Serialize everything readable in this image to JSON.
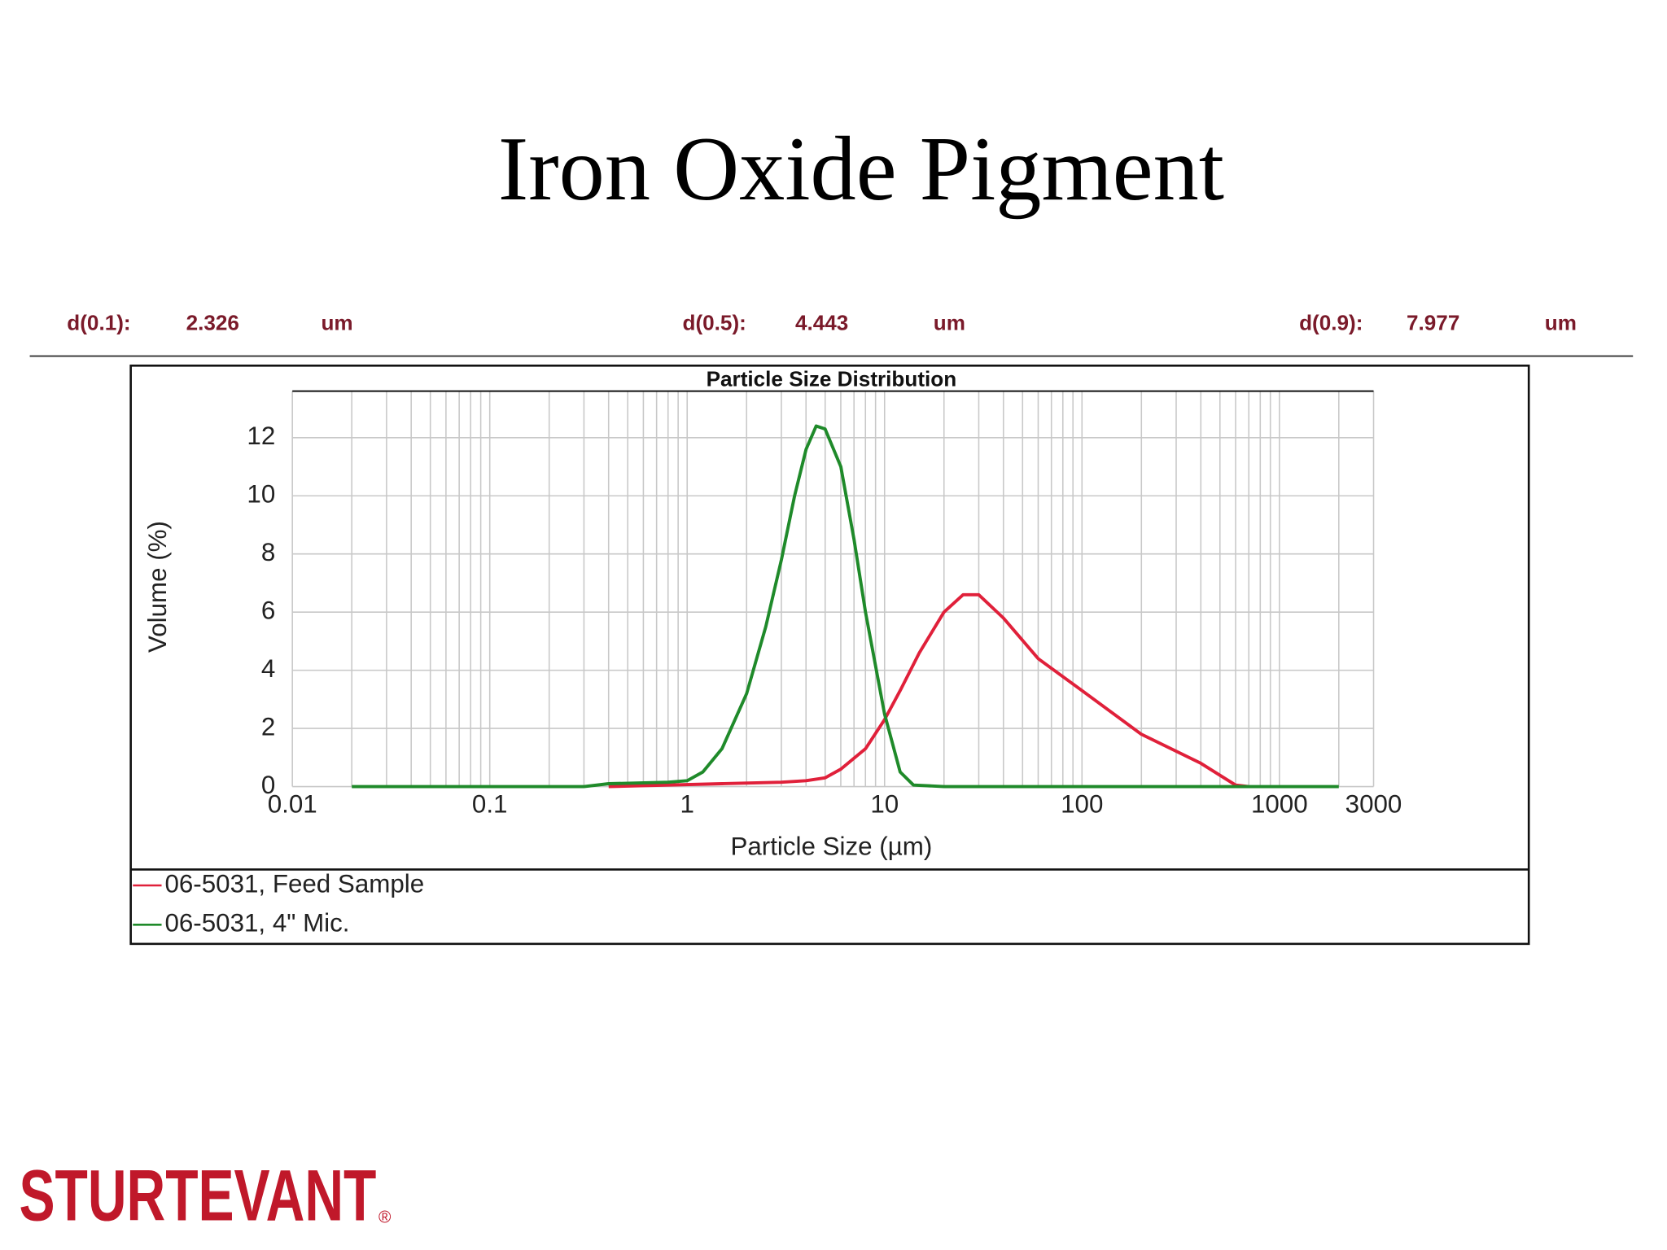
{
  "slide": {
    "title": "Iron Oxide Pigment",
    "stats": [
      {
        "label": "d(0.1):",
        "value": 2.326,
        "unit": "um"
      },
      {
        "label": "d(0.5):",
        "value": 4.443,
        "unit": "um"
      },
      {
        "label": "d(0.9):",
        "value": 7.977,
        "unit": "um"
      }
    ],
    "logo": "STURTEVANT",
    "logo_mark": "®"
  },
  "chart_data": {
    "type": "line",
    "title": "Particle Size Distribution",
    "x_label": "Particle Size (µm)",
    "y_label": "Volume (%)",
    "xlog": true,
    "grid": true,
    "xlim": [
      0.01,
      3000
    ],
    "xticks": [
      0.01,
      0.1,
      1,
      10,
      100,
      1000,
      3000
    ],
    "xminorticks": [
      0.02,
      0.03,
      0.04,
      0.05,
      0.06,
      0.07,
      0.08,
      0.09,
      0.2,
      0.3,
      0.4,
      0.5,
      0.6,
      0.7,
      0.8,
      0.9,
      2,
      3,
      4,
      5,
      6,
      7,
      8,
      9,
      20,
      30,
      40,
      50,
      60,
      70,
      80,
      90,
      200,
      300,
      400,
      500,
      600,
      700,
      800,
      900,
      2000
    ],
    "ylim": [
      0,
      13.6
    ],
    "yticks": [
      0,
      2,
      4,
      6,
      8,
      10,
      12
    ],
    "series": [
      {
        "name": "06-5031, Feed Sample",
        "color": "#e0203a",
        "x": [
          0.4,
          1.5,
          3,
          4,
          5,
          6,
          8,
          10,
          12,
          15,
          20,
          25,
          30,
          40,
          60,
          100,
          200,
          400,
          600,
          700
        ],
        "values": [
          0,
          0.1,
          0.15,
          0.2,
          0.3,
          0.6,
          1.3,
          2.3,
          3.3,
          4.6,
          6.0,
          6.6,
          6.6,
          5.8,
          4.4,
          3.3,
          1.8,
          0.8,
          0.05,
          0
        ]
      },
      {
        "name": "06-5031, 4\" Mic.",
        "color": "#1f8a2a",
        "x": [
          0.02,
          0.3,
          0.4,
          0.8,
          1,
          1.2,
          1.5,
          2,
          2.5,
          3,
          3.5,
          4,
          4.5,
          5,
          6,
          7,
          8,
          10,
          12,
          14,
          20,
          100,
          1000,
          2000
        ],
        "values": [
          0,
          0,
          0.1,
          0.15,
          0.2,
          0.5,
          1.3,
          3.2,
          5.5,
          7.8,
          10,
          11.6,
          12.4,
          12.3,
          11,
          8.5,
          6,
          2.5,
          0.5,
          0.05,
          0,
          0,
          0,
          0
        ]
      }
    ]
  }
}
